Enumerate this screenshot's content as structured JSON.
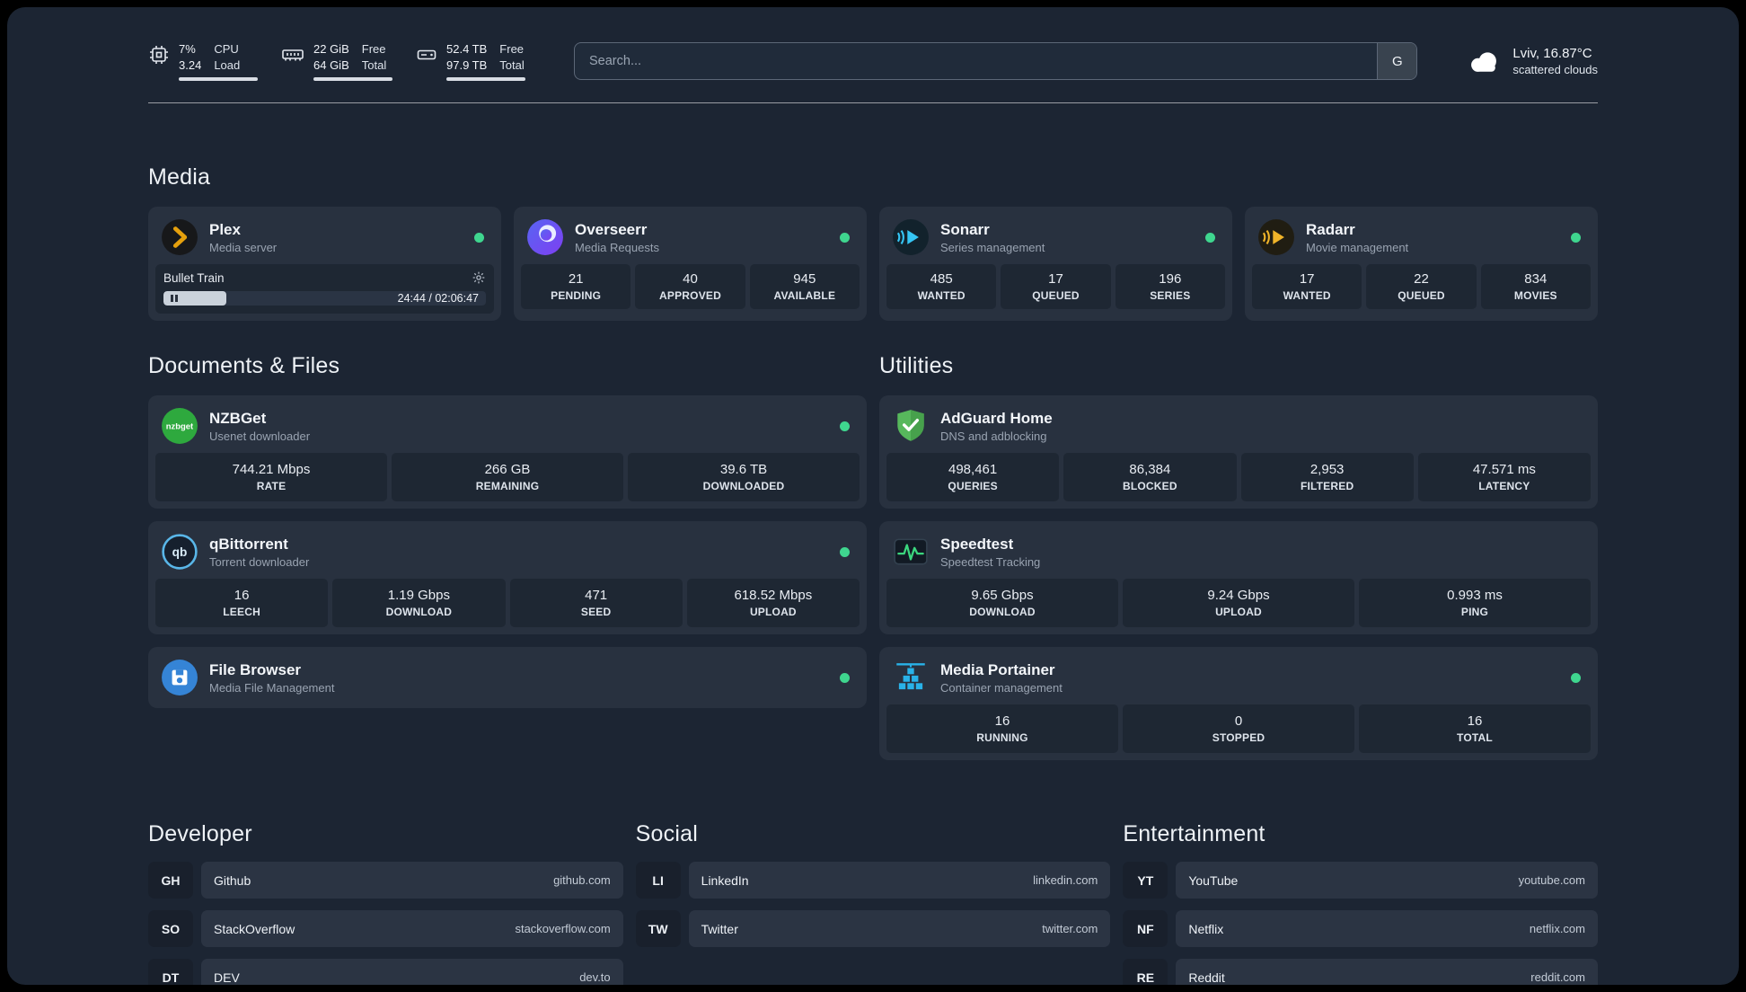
{
  "colors": {
    "status_online": "#3fd68f",
    "background": "#1c2533",
    "card": "#28313f",
    "stat_tile": "#1e2733",
    "plex_accent": "#e5a00d"
  },
  "header": {
    "cpu": {
      "percent": "7%",
      "load": "3.24",
      "label_top": "CPU",
      "label_bottom": "Load"
    },
    "memory": {
      "free": "22 GiB",
      "total": "64 GiB",
      "label_top": "Free",
      "label_bottom": "Total"
    },
    "disk": {
      "free": "52.4 TB",
      "total": "97.9 TB",
      "label_top": "Free",
      "label_bottom": "Total"
    },
    "search": {
      "placeholder": "Search...",
      "button_label": "G"
    },
    "weather": {
      "location": "Lviv, 16.87°C",
      "condition": "scattered clouds"
    }
  },
  "sections": {
    "media": {
      "title": "Media",
      "services": [
        {
          "name": "Plex",
          "description": "Media server",
          "now_playing": {
            "title": "Bullet Train",
            "time": "24:44 / 02:06:47",
            "progress_percent": 19.5
          }
        },
        {
          "name": "Overseerr",
          "description": "Media Requests",
          "stats": [
            {
              "value": "21",
              "label": "PENDING"
            },
            {
              "value": "40",
              "label": "APPROVED"
            },
            {
              "value": "945",
              "label": "AVAILABLE"
            }
          ]
        },
        {
          "name": "Sonarr",
          "description": "Series management",
          "stats": [
            {
              "value": "485",
              "label": "WANTED"
            },
            {
              "value": "17",
              "label": "QUEUED"
            },
            {
              "value": "196",
              "label": "SERIES"
            }
          ]
        },
        {
          "name": "Radarr",
          "description": "Movie management",
          "stats": [
            {
              "value": "17",
              "label": "WANTED"
            },
            {
              "value": "22",
              "label": "QUEUED"
            },
            {
              "value": "834",
              "label": "MOVIES"
            }
          ]
        }
      ]
    },
    "documents": {
      "title": "Documents & Files",
      "services": [
        {
          "name": "NZBGet",
          "description": "Usenet downloader",
          "stats": [
            {
              "value": "744.21 Mbps",
              "label": "RATE"
            },
            {
              "value": "266 GB",
              "label": "REMAINING"
            },
            {
              "value": "39.6 TB",
              "label": "DOWNLOADED"
            }
          ]
        },
        {
          "name": "qBittorrent",
          "description": "Torrent downloader",
          "stats": [
            {
              "value": "16",
              "label": "LEECH"
            },
            {
              "value": "1.19 Gbps",
              "label": "DOWNLOAD"
            },
            {
              "value": "471",
              "label": "SEED"
            },
            {
              "value": "618.52 Mbps",
              "label": "UPLOAD"
            }
          ]
        },
        {
          "name": "File Browser",
          "description": "Media File Management"
        }
      ]
    },
    "utilities": {
      "title": "Utilities",
      "services": [
        {
          "name": "AdGuard Home",
          "description": "DNS and adblocking",
          "stats": [
            {
              "value": "498,461",
              "label": "QUERIES"
            },
            {
              "value": "86,384",
              "label": "BLOCKED"
            },
            {
              "value": "2,953",
              "label": "FILTERED"
            },
            {
              "value": "47.571 ms",
              "label": "LATENCY"
            }
          ]
        },
        {
          "name": "Speedtest",
          "description": "Speedtest Tracking",
          "stats": [
            {
              "value": "9.65 Gbps",
              "label": "DOWNLOAD"
            },
            {
              "value": "9.24 Gbps",
              "label": "UPLOAD"
            },
            {
              "value": "0.993 ms",
              "label": "PING"
            }
          ]
        },
        {
          "name": "Media Portainer",
          "description": "Container management",
          "stats": [
            {
              "value": "16",
              "label": "RUNNING"
            },
            {
              "value": "0",
              "label": "STOPPED"
            },
            {
              "value": "16",
              "label": "TOTAL"
            }
          ]
        }
      ]
    },
    "developer": {
      "title": "Developer",
      "items": [
        {
          "abbr": "GH",
          "name": "Github",
          "url": "github.com"
        },
        {
          "abbr": "SO",
          "name": "StackOverflow",
          "url": "stackoverflow.com"
        },
        {
          "abbr": "DT",
          "name": "DEV",
          "url": "dev.to"
        }
      ]
    },
    "social": {
      "title": "Social",
      "items": [
        {
          "abbr": "LI",
          "name": "LinkedIn",
          "url": "linkedin.com"
        },
        {
          "abbr": "TW",
          "name": "Twitter",
          "url": "twitter.com"
        }
      ]
    },
    "entertainment": {
      "title": "Entertainment",
      "items": [
        {
          "abbr": "YT",
          "name": "YouTube",
          "url": "youtube.com"
        },
        {
          "abbr": "NF",
          "name": "Netflix",
          "url": "netflix.com"
        },
        {
          "abbr": "RE",
          "name": "Reddit",
          "url": "reddit.com"
        }
      ]
    }
  }
}
